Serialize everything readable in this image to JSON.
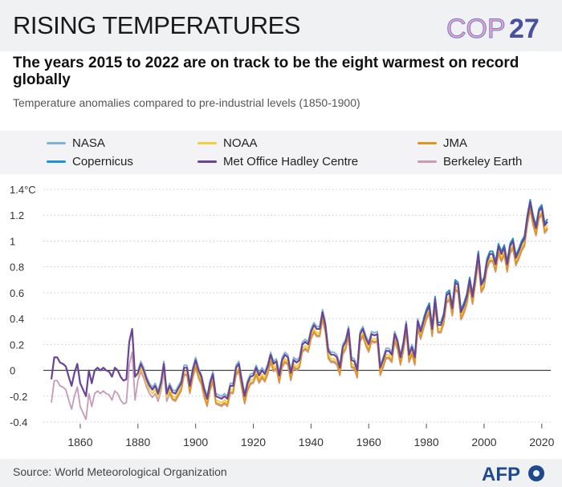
{
  "header": {
    "title": "RISING TEMPERATURES",
    "logo_text": "COP",
    "logo_number": "27",
    "subtitle": "The years 2015 to 2022 are on track to be the eight warmest on record globally",
    "note": "Temperature anomalies compared to pre-industrial levels (1850-1900)"
  },
  "footer": {
    "source": "Source: World Meteorological Organization",
    "agency": "AFP"
  },
  "chart_data": {
    "type": "line",
    "xlim": [
      1850,
      2022
    ],
    "ylim": [
      -0.4,
      1.4
    ],
    "xticks": [
      1860,
      1880,
      1900,
      1920,
      1940,
      1960,
      1980,
      2000,
      2020
    ],
    "yticks": [
      -0.4,
      -0.2,
      0,
      0.2,
      0.4,
      0.6,
      0.8,
      1,
      1.2,
      1.4
    ],
    "ytick_labels": [
      "-0.4",
      "-0.2",
      "0",
      "0.2",
      "0.4",
      "0.6",
      "0.8",
      "1",
      "1.2",
      "1.4°C"
    ],
    "grid": "horizontal dotted",
    "legend_position": "top",
    "series": [
      {
        "name": "NASA",
        "color": "#7db3d8",
        "x_start": 1880,
        "x_end": 2022,
        "offset": 0.02
      },
      {
        "name": "NOAA",
        "color": "#f3cf3c",
        "x_start": 1880,
        "x_end": 2022,
        "offset": -0.03
      },
      {
        "name": "JMA",
        "color": "#e0951f",
        "x_start": 1891,
        "x_end": 2022,
        "offset": -0.05
      },
      {
        "name": "Copernicus",
        "color": "#1f94c9",
        "x_start": 1979,
        "x_end": 2022,
        "offset": 0.02
      },
      {
        "name": "Met Office Hadley Centre",
        "color": "#6a4496",
        "x_start": 1850,
        "x_end": 2022,
        "offset": 0
      },
      {
        "name": "Berkeley Earth",
        "color": "#c69bb6",
        "x_start": 1850,
        "x_end": 2022,
        "offset": -0.06
      }
    ],
    "base_points": [
      [
        1850,
        -0.07
      ],
      [
        1851,
        0.1
      ],
      [
        1852,
        0.1
      ],
      [
        1853,
        0.06
      ],
      [
        1854,
        0.05
      ],
      [
        1855,
        0.03
      ],
      [
        1856,
        -0.05
      ],
      [
        1857,
        -0.12
      ],
      [
        1858,
        -0.02
      ],
      [
        1859,
        0.05
      ],
      [
        1860,
        -0.1
      ],
      [
        1861,
        -0.15
      ],
      [
        1862,
        -0.2
      ],
      [
        1863,
        0.0
      ],
      [
        1864,
        -0.1
      ],
      [
        1865,
        0.0
      ],
      [
        1866,
        0.02
      ],
      [
        1867,
        0.0
      ],
      [
        1868,
        0.02
      ],
      [
        1869,
        0.0
      ],
      [
        1870,
        -0.01
      ],
      [
        1871,
        -0.05
      ],
      [
        1872,
        0.02
      ],
      [
        1873,
        0.0
      ],
      [
        1874,
        -0.05
      ],
      [
        1875,
        -0.08
      ],
      [
        1876,
        -0.07
      ],
      [
        1877,
        0.22
      ],
      [
        1878,
        0.32
      ],
      [
        1879,
        -0.05
      ],
      [
        1880,
        -0.02
      ],
      [
        1881,
        0.05
      ],
      [
        1882,
        0.0
      ],
      [
        1883,
        -0.07
      ],
      [
        1884,
        -0.12
      ],
      [
        1885,
        -0.15
      ],
      [
        1886,
        -0.12
      ],
      [
        1887,
        -0.18
      ],
      [
        1888,
        -0.1
      ],
      [
        1889,
        0.05
      ],
      [
        1890,
        -0.18
      ],
      [
        1891,
        -0.12
      ],
      [
        1892,
        -0.17
      ],
      [
        1893,
        -0.18
      ],
      [
        1894,
        -0.14
      ],
      [
        1895,
        -0.1
      ],
      [
        1896,
        0.02
      ],
      [
        1897,
        0.02
      ],
      [
        1898,
        -0.12
      ],
      [
        1899,
        0.0
      ],
      [
        1900,
        0.08
      ],
      [
        1901,
        0.0
      ],
      [
        1902,
        -0.05
      ],
      [
        1903,
        -0.15
      ],
      [
        1904,
        -0.22
      ],
      [
        1905,
        -0.1
      ],
      [
        1906,
        -0.03
      ],
      [
        1907,
        -0.2
      ],
      [
        1908,
        -0.21
      ],
      [
        1909,
        -0.22
      ],
      [
        1910,
        -0.2
      ],
      [
        1911,
        -0.22
      ],
      [
        1912,
        -0.12
      ],
      [
        1913,
        -0.12
      ],
      [
        1914,
        0.02
      ],
      [
        1915,
        0.05
      ],
      [
        1916,
        -0.08
      ],
      [
        1917,
        -0.2
      ],
      [
        1918,
        -0.1
      ],
      [
        1919,
        -0.05
      ],
      [
        1920,
        -0.04
      ],
      [
        1921,
        0.02
      ],
      [
        1922,
        -0.04
      ],
      [
        1923,
        0.0
      ],
      [
        1924,
        -0.03
      ],
      [
        1925,
        0.03
      ],
      [
        1926,
        0.12
      ],
      [
        1927,
        0.05
      ],
      [
        1928,
        0.07
      ],
      [
        1929,
        -0.04
      ],
      [
        1930,
        0.08
      ],
      [
        1931,
        0.12
      ],
      [
        1932,
        0.1
      ],
      [
        1933,
        -0.02
      ],
      [
        1934,
        0.08
      ],
      [
        1935,
        0.06
      ],
      [
        1936,
        0.08
      ],
      [
        1937,
        0.2
      ],
      [
        1938,
        0.22
      ],
      [
        1939,
        0.2
      ],
      [
        1940,
        0.3
      ],
      [
        1941,
        0.35
      ],
      [
        1942,
        0.32
      ],
      [
        1943,
        0.32
      ],
      [
        1944,
        0.45
      ],
      [
        1945,
        0.35
      ],
      [
        1946,
        0.15
      ],
      [
        1947,
        0.12
      ],
      [
        1948,
        0.12
      ],
      [
        1949,
        0.1
      ],
      [
        1950,
        0.02
      ],
      [
        1951,
        0.18
      ],
      [
        1952,
        0.22
      ],
      [
        1953,
        0.32
      ],
      [
        1954,
        0.08
      ],
      [
        1955,
        0.07
      ],
      [
        1956,
        0.0
      ],
      [
        1957,
        0.28
      ],
      [
        1958,
        0.32
      ],
      [
        1959,
        0.25
      ],
      [
        1960,
        0.2
      ],
      [
        1961,
        0.28
      ],
      [
        1962,
        0.27
      ],
      [
        1963,
        0.28
      ],
      [
        1964,
        0.02
      ],
      [
        1965,
        0.08
      ],
      [
        1966,
        0.15
      ],
      [
        1967,
        0.15
      ],
      [
        1968,
        0.12
      ],
      [
        1969,
        0.28
      ],
      [
        1970,
        0.22
      ],
      [
        1971,
        0.1
      ],
      [
        1972,
        0.2
      ],
      [
        1973,
        0.36
      ],
      [
        1974,
        0.12
      ],
      [
        1975,
        0.18
      ],
      [
        1976,
        0.1
      ],
      [
        1977,
        0.38
      ],
      [
        1978,
        0.3
      ],
      [
        1979,
        0.38
      ],
      [
        1980,
        0.45
      ],
      [
        1981,
        0.5
      ],
      [
        1982,
        0.32
      ],
      [
        1983,
        0.55
      ],
      [
        1984,
        0.35
      ],
      [
        1985,
        0.35
      ],
      [
        1986,
        0.42
      ],
      [
        1987,
        0.58
      ],
      [
        1988,
        0.6
      ],
      [
        1989,
        0.48
      ],
      [
        1990,
        0.68
      ],
      [
        1991,
        0.66
      ],
      [
        1992,
        0.45
      ],
      [
        1993,
        0.5
      ],
      [
        1994,
        0.57
      ],
      [
        1995,
        0.7
      ],
      [
        1996,
        0.57
      ],
      [
        1997,
        0.73
      ],
      [
        1998,
        0.9
      ],
      [
        1999,
        0.66
      ],
      [
        2000,
        0.7
      ],
      [
        2001,
        0.84
      ],
      [
        2002,
        0.9
      ],
      [
        2003,
        0.9
      ],
      [
        2004,
        0.82
      ],
      [
        2005,
        0.96
      ],
      [
        2006,
        0.9
      ],
      [
        2007,
        0.95
      ],
      [
        2008,
        0.82
      ],
      [
        2009,
        0.96
      ],
      [
        2010,
        1.0
      ],
      [
        2011,
        0.87
      ],
      [
        2012,
        0.92
      ],
      [
        2013,
        0.98
      ],
      [
        2014,
        1.02
      ],
      [
        2015,
        1.18
      ],
      [
        2016,
        1.3
      ],
      [
        2017,
        1.18
      ],
      [
        2018,
        1.1
      ],
      [
        2019,
        1.23
      ],
      [
        2020,
        1.26
      ],
      [
        2021,
        1.12
      ],
      [
        2022,
        1.15
      ]
    ]
  }
}
